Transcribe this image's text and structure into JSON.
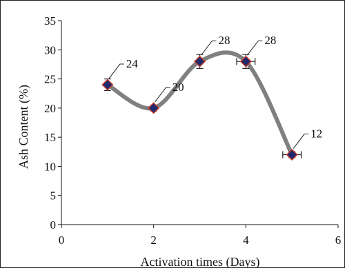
{
  "chart_data": {
    "type": "scatter",
    "title": "",
    "xlabel": "Activation times (Days)",
    "ylabel": "Ash Content (%)",
    "xlim": [
      0,
      6
    ],
    "ylim": [
      0,
      35
    ],
    "x_ticks": [
      0,
      2,
      4,
      6
    ],
    "y_ticks": [
      0,
      5,
      10,
      15,
      20,
      25,
      30,
      35
    ],
    "grid": false,
    "legend": "none",
    "series": [
      {
        "x": [
          1,
          2,
          3,
          4,
          5
        ],
        "y": [
          24,
          20,
          28,
          28,
          12
        ],
        "y_error": [
          1,
          0.5,
          1.2,
          1.2,
          0.5
        ],
        "x_error": [
          0,
          0,
          0,
          0.2,
          0.2
        ],
        "data_labels": [
          "24",
          "20",
          "28",
          "28",
          "12"
        ],
        "marker": "diamond",
        "marker_color": "#1f2a6e",
        "marker_edge_color": "#c0392b",
        "line": "smooth",
        "line_color": "#808080"
      }
    ]
  }
}
